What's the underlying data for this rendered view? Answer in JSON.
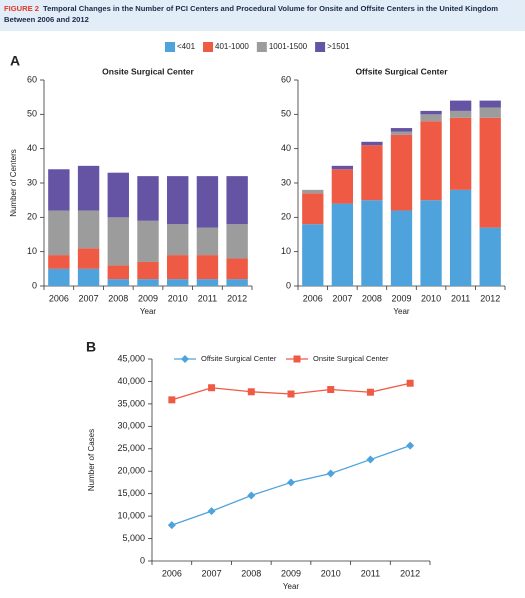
{
  "figure_label": "FIGURE 2",
  "title": "Temporal Changes in the Number of PCI Centers and Procedural Volume for Onsite and Offsite Centers in the United Kingdom Between 2006 and 2012",
  "panel_a": "A",
  "panel_b": "B",
  "chart_data": [
    {
      "type": "bar",
      "stacked": true,
      "title": "Onsite Surgical Center",
      "y_label": "Number of Centers",
      "x_label": "Year",
      "categories": [
        "2006",
        "2007",
        "2008",
        "2009",
        "2010",
        "2011",
        "2012"
      ],
      "series": [
        {
          "name": "<401",
          "color": "#4fa3dc",
          "values": [
            5,
            5,
            2,
            2,
            2,
            2,
            2
          ]
        },
        {
          "name": "401-1000",
          "color": "#ef5a44",
          "values": [
            4,
            6,
            4,
            5,
            7,
            7,
            6
          ]
        },
        {
          "name": "1001-1500",
          "color": "#9c9c9c",
          "values": [
            13,
            11,
            14,
            12,
            9,
            8,
            10
          ]
        },
        {
          "name": ">1501",
          "color": "#6553a4",
          "values": [
            12,
            13,
            13,
            13,
            14,
            15,
            14
          ]
        }
      ],
      "ylim": [
        0,
        60
      ],
      "yticks": [
        0,
        10,
        20,
        30,
        40,
        50,
        60
      ]
    },
    {
      "type": "bar",
      "stacked": true,
      "title": "Offsite Surgical Center",
      "x_label": "Year",
      "categories": [
        "2006",
        "2007",
        "2008",
        "2009",
        "2010",
        "2011",
        "2012"
      ],
      "series": [
        {
          "color": "#4fa3dc",
          "values": [
            18,
            24,
            25,
            22,
            25,
            28,
            17
          ]
        },
        {
          "color": "#ef5a44",
          "values": [
            9,
            10,
            16,
            22,
            23,
            21,
            32
          ]
        },
        {
          "color": "#9c9c9c",
          "values": [
            1,
            0,
            0,
            1,
            2,
            2,
            3
          ]
        },
        {
          "color": "#6553a4",
          "values": [
            0,
            1,
            1,
            1,
            1,
            3,
            2
          ]
        }
      ],
      "ylim": [
        0,
        60
      ],
      "yticks": [
        0,
        10,
        20,
        30,
        40,
        50,
        60
      ]
    },
    {
      "type": "line",
      "y_label": "Number of Cases",
      "x_label": "Year",
      "categories": [
        "2006",
        "2007",
        "2008",
        "2009",
        "2010",
        "2011",
        "2012"
      ],
      "series": [
        {
          "name": "Offsite Surgical Center",
          "color": "#4fa3dc",
          "marker": "diamond",
          "values": [
            8000,
            11100,
            14600,
            17500,
            19500,
            22600,
            25700
          ]
        },
        {
          "name": "Onsite Surgical Center",
          "color": "#ef5a44",
          "marker": "square",
          "values": [
            35900,
            38600,
            37700,
            37200,
            38200,
            37600,
            39600
          ]
        }
      ],
      "ylim": [
        0,
        45000
      ],
      "yticks": [
        0,
        {
          "value": 5000,
          "label": "5,000"
        },
        {
          "value": 10000,
          "label": "10,000"
        },
        {
          "value": 15000,
          "label": "15,000"
        },
        {
          "value": 20000,
          "label": "20,000"
        },
        {
          "value": 25000,
          "label": "25,000"
        },
        {
          "value": 30000,
          "label": "30,000"
        },
        {
          "value": 35000,
          "label": "35,000"
        },
        {
          "value": 40000,
          "label": "40,000"
        },
        {
          "value": 45000,
          "label": "45,000"
        }
      ]
    }
  ]
}
